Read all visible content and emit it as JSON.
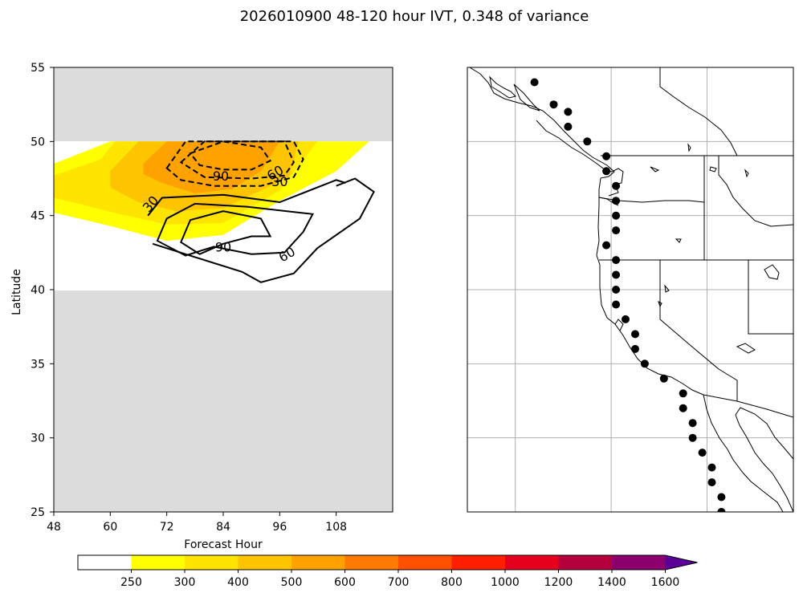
{
  "figure": {
    "title": "2026010900 48-120 hour IVT, 0.348 of variance"
  },
  "colors": {
    "missing_fill": "#dcdcdc",
    "plot_background": "#ffffff",
    "contour_line": "#000000",
    "station_marker": "#000000",
    "grid": "#b0b0b0"
  },
  "chart_data": [
    {
      "type": "heatmap",
      "title": "",
      "xlabel": "Forecast Hour",
      "ylabel": "Latitude",
      "xlim": [
        48,
        120
      ],
      "ylim": [
        25,
        55
      ],
      "xticks": [
        48,
        60,
        72,
        84,
        96,
        108
      ],
      "yticks": [
        25,
        30,
        35,
        40,
        45,
        50,
        55
      ],
      "data_domain": {
        "lat": [
          40,
          50
        ],
        "note_missing": "gray outside lat 40-50"
      },
      "filled_contours": [
        {
          "level": 250,
          "color": "#ffff00",
          "polygon": [
            [
              48,
              48.5
            ],
            [
              60,
              50
            ],
            [
              70,
              50
            ],
            [
              93,
              50
            ],
            [
              106,
              50
            ],
            [
              115,
              50
            ],
            [
              108,
              48
            ],
            [
              96,
              46
            ],
            [
              84,
              43.7
            ],
            [
              72,
              43.3
            ],
            [
              60,
              44.3
            ],
            [
              48,
              45.2
            ]
          ]
        },
        {
          "level": 300,
          "color": "#ffe400",
          "polygon": [
            [
              48,
              47.7
            ],
            [
              58,
              48.8
            ],
            [
              61,
              50
            ],
            [
              104,
              50
            ],
            [
              96,
              46.7
            ],
            [
              84,
              44.5
            ],
            [
              72,
              44.4
            ],
            [
              62,
              45.1
            ],
            [
              52,
              45.9
            ],
            [
              48,
              46.2
            ]
          ]
        },
        {
          "level": 400,
          "color": "#ffc400",
          "polygon": [
            [
              60,
              48
            ],
            [
              66,
              50
            ],
            [
              100,
              50
            ],
            [
              98,
              47.6
            ],
            [
              92,
              46.7
            ],
            [
              84,
              45.5
            ],
            [
              74,
              45.3
            ],
            [
              66,
              45.9
            ],
            [
              60,
              46.9
            ]
          ]
        },
        {
          "level": 500,
          "color": "#ffa200",
          "polygon": [
            [
              67,
              48.5
            ],
            [
              72,
              50
            ],
            [
              96,
              50
            ],
            [
              92,
              48
            ],
            [
              86,
              46.8
            ],
            [
              78,
              46.5
            ],
            [
              71,
              47.2
            ],
            [
              67,
              47.8
            ]
          ]
        }
      ],
      "line_contours": [
        {
          "level": 90,
          "style": "dashed",
          "label": "90",
          "label_at": [
            83.5,
            47.7
          ],
          "points": [
            [
              77,
              49.2
            ],
            [
              84,
              50
            ],
            [
              92,
              49.6
            ],
            [
              94,
              48.7
            ],
            [
              90,
              48.1
            ],
            [
              84,
              48.1
            ],
            [
              79,
              48.4
            ]
          ],
          "closed": true
        },
        {
          "level": 60,
          "style": "dashed",
          "label": "60",
          "label_at": [
            95,
            47.9
          ],
          "points": [
            [
              75,
              48.6
            ],
            [
              80,
              50
            ],
            [
              97,
              50
            ],
            [
              99,
              48.6
            ],
            [
              97,
              47.7
            ],
            [
              90,
              47.5
            ],
            [
              80,
              47.6
            ]
          ],
          "closed": true
        },
        {
          "level": 30,
          "style": "dashed",
          "label": "30",
          "label_at": [
            96,
            47.3
          ],
          "points": [
            [
              72,
              48.2
            ],
            [
              76,
              50
            ],
            [
              99,
              50
            ],
            [
              101,
              48.8
            ],
            [
              99,
              47.6
            ],
            [
              92,
              47
            ],
            [
              82,
              47
            ],
            [
              75,
              47.4
            ]
          ],
          "closed": true
        },
        {
          "level": 30,
          "style": "solid",
          "label": "30",
          "label_at": [
            68.5,
            45.8
          ],
          "points": [
            [
              68,
              45
            ],
            [
              71,
              46.2
            ],
            [
              84,
              46.4
            ],
            [
              96,
              45.9
            ],
            [
              108,
              47.4
            ],
            [
              110,
              47.2
            ]
          ],
          "closed": false
        },
        {
          "level": 90,
          "style": "solid",
          "label": "90",
          "label_at": [
            84,
            42.9
          ],
          "points": [
            [
              75,
              43.2
            ],
            [
              77,
              44.7
            ],
            [
              84,
              45.3
            ],
            [
              92,
              44.8
            ],
            [
              94,
              43.6
            ],
            [
              90,
              43.6
            ],
            [
              84,
              43.1
            ],
            [
              79,
              42.4
            ]
          ],
          "closed": true
        },
        {
          "level": 60,
          "style": "solid",
          "label": "60",
          "label_at": [
            97.5,
            42.4
          ],
          "points": [
            [
              70,
              43.3
            ],
            [
              72,
              44.8
            ],
            [
              78,
              45.8
            ],
            [
              89,
              45.6
            ],
            [
              103,
              45.1
            ],
            [
              101,
              43.9
            ],
            [
              97,
              42.5
            ],
            [
              90,
              42.4
            ],
            [
              82,
              42.9
            ],
            [
              76,
              42.3
            ]
          ],
          "closed": true
        },
        {
          "level": 30,
          "style": "solid",
          "label": "",
          "label_at": null,
          "points": [
            [
              69,
              43.1
            ],
            [
              78,
              42.2
            ],
            [
              88,
              41.2
            ],
            [
              92,
              40.5
            ],
            [
              99,
              41.1
            ],
            [
              104,
              42.8
            ],
            [
              113,
              44.8
            ],
            [
              116,
              46.6
            ],
            [
              112,
              47.5
            ],
            [
              108,
              47
            ]
          ],
          "closed": false
        }
      ]
    },
    {
      "type": "scatter",
      "title": "",
      "description_of_marks": "IVT evaluation points along the U.S. West Coast, lon/lat degrees",
      "x_label": "",
      "y_label": "",
      "xlim": [
        -140,
        -106
      ],
      "ylim": [
        25,
        55
      ],
      "grid_lons": [
        -135,
        -125,
        -115,
        -105
      ],
      "grid_lats": [
        30,
        35,
        40,
        45,
        50
      ],
      "points": [
        {
          "lon": -133.0,
          "lat": 54.0
        },
        {
          "lon": -131.0,
          "lat": 52.5
        },
        {
          "lon": -129.5,
          "lat": 52.0
        },
        {
          "lon": -129.5,
          "lat": 51.0
        },
        {
          "lon": -127.5,
          "lat": 50.0
        },
        {
          "lon": -125.5,
          "lat": 49.0
        },
        {
          "lon": -125.5,
          "lat": 48.0
        },
        {
          "lon": -124.5,
          "lat": 47.0
        },
        {
          "lon": -124.5,
          "lat": 46.0
        },
        {
          "lon": -124.5,
          "lat": 45.0
        },
        {
          "lon": -124.5,
          "lat": 44.0
        },
        {
          "lon": -125.5,
          "lat": 43.0
        },
        {
          "lon": -124.5,
          "lat": 42.0
        },
        {
          "lon": -124.5,
          "lat": 41.0
        },
        {
          "lon": -124.5,
          "lat": 40.0
        },
        {
          "lon": -124.5,
          "lat": 39.0
        },
        {
          "lon": -123.5,
          "lat": 38.0
        },
        {
          "lon": -122.5,
          "lat": 37.0
        },
        {
          "lon": -122.5,
          "lat": 36.0
        },
        {
          "lon": -121.5,
          "lat": 35.0
        },
        {
          "lon": -119.5,
          "lat": 34.0
        },
        {
          "lon": -117.5,
          "lat": 33.0
        },
        {
          "lon": -117.5,
          "lat": 32.0
        },
        {
          "lon": -116.5,
          "lat": 31.0
        },
        {
          "lon": -116.5,
          "lat": 30.0
        },
        {
          "lon": -115.5,
          "lat": 29.0
        },
        {
          "lon": -114.5,
          "lat": 28.0
        },
        {
          "lon": -114.5,
          "lat": 27.0
        },
        {
          "lon": -113.5,
          "lat": 26.0
        },
        {
          "lon": -113.5,
          "lat": 25.0
        }
      ]
    }
  ],
  "colorbar": {
    "orientation": "horizontal",
    "extend": "max",
    "levels": [
      250,
      300,
      400,
      500,
      600,
      700,
      800,
      1000,
      1200,
      1400,
      1600
    ],
    "tick_labels": [
      "250",
      "300",
      "400",
      "500",
      "600",
      "700",
      "800",
      "1000",
      "1200",
      "1400",
      "1600"
    ],
    "under_color": "#ffffff",
    "colors": [
      "#ffff00",
      "#ffe400",
      "#ffc400",
      "#ffa200",
      "#ff7a00",
      "#ff5000",
      "#ff1e00",
      "#e6001e",
      "#b4003c",
      "#8c006e",
      "#6a0096",
      "#5a0096"
    ]
  }
}
